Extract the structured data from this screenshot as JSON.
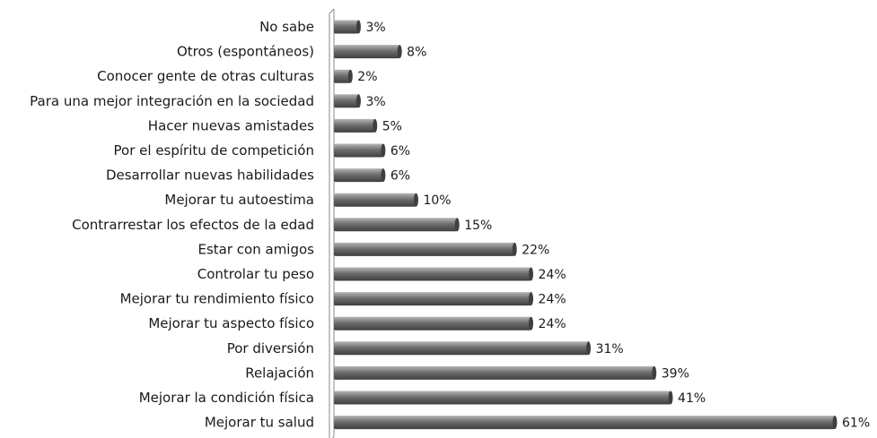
{
  "chart_data": {
    "type": "bar",
    "orientation": "horizontal",
    "title": "",
    "xlabel": "",
    "ylabel": "",
    "xlim": [
      0,
      61
    ],
    "grid": false,
    "legend": "none",
    "value_suffix": "%",
    "colors": {
      "bar": "#6e6e6e",
      "bar_light": "#b5b5b5",
      "bar_dark": "#3f3f3f",
      "axis": "#8a8a8a"
    },
    "categories": [
      "No sabe",
      "Otros (espontáneos)",
      "Conocer gente de otras culturas",
      "Para una mejor integración en la sociedad",
      "Hacer nuevas amistades",
      "Por el espíritu de competición",
      "Desarrollar nuevas habilidades",
      "Mejorar tu autoestima",
      "Contrarrestar los efectos de la edad",
      "Estar con amigos",
      "Controlar tu peso",
      "Mejorar tu rendimiento físico",
      "Mejorar tu aspecto físico",
      "Por diversión",
      "Relajación",
      "Mejorar la condición física",
      "Mejorar tu salud"
    ],
    "values": [
      3,
      8,
      2,
      3,
      5,
      6,
      6,
      10,
      15,
      22,
      24,
      24,
      24,
      31,
      39,
      41,
      61
    ]
  }
}
